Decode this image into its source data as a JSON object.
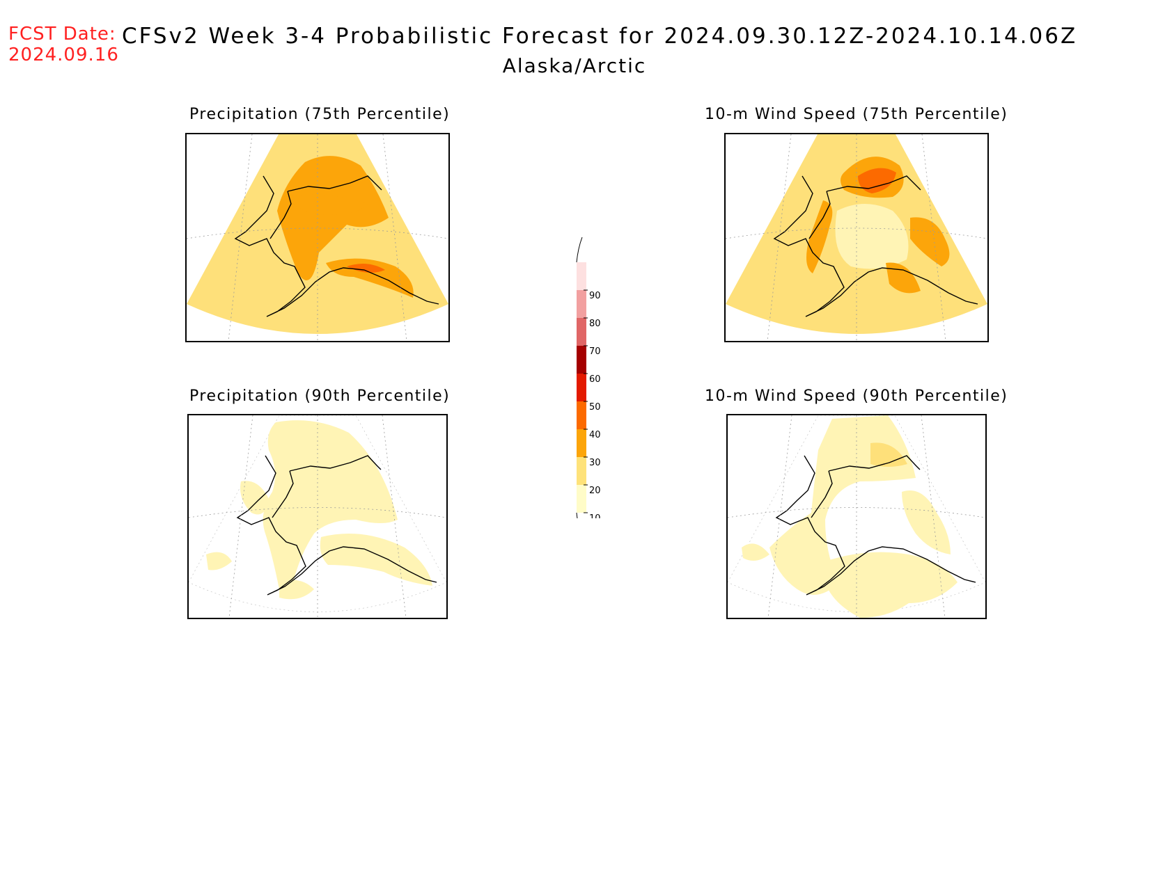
{
  "header": {
    "fcst_label": "FCST Date:",
    "fcst_date": "2024.09.16",
    "title": "CFSv2 Week 3-4 Probabilistic Forecast for 2024.09.30.12Z-2024.10.14.06Z",
    "subtitle": "Alaska/Arctic"
  },
  "panels": [
    {
      "id": "precip75",
      "title": "Precipitation (75th Percentile)"
    },
    {
      "id": "wind75",
      "title": "10-m Wind Speed (75th Percentile)"
    },
    {
      "id": "precip90",
      "title": "Precipitation (90th Percentile)"
    },
    {
      "id": "wind90",
      "title": "10-m Wind Speed (90th Percentile)"
    }
  ],
  "colorbar": {
    "levels": [
      "10",
      "20",
      "30",
      "40",
      "50",
      "60",
      "70",
      "80",
      "90"
    ],
    "colors": [
      "#fffcc8",
      "#fee27a",
      "#fca50a",
      "#fc6a00",
      "#e31a00",
      "#a50000",
      "#e06666",
      "#f2a0a0",
      "#fde0e0"
    ]
  },
  "colors": {
    "fcst": "#ff2020",
    "level_10_20": "#fff4b5",
    "level_20_30": "#fee07a",
    "level_30_40": "#fca50a",
    "level_40_50": "#fc6a00",
    "coast": "#000000",
    "grid": "#9a9a9a"
  }
}
